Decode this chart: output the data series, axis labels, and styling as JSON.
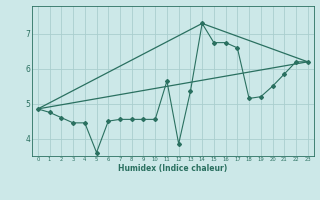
{
  "xlabel": "Humidex (Indice chaleur)",
  "bg_color": "#cce8e8",
  "line_color": "#2a7060",
  "grid_color": "#aacece",
  "x_min": -0.5,
  "x_max": 23.5,
  "y_min": 3.5,
  "y_max": 7.8,
  "series1_x": [
    0,
    1,
    2,
    3,
    4,
    5,
    6,
    7,
    8,
    9,
    10,
    11,
    12,
    13,
    14,
    15,
    16,
    17,
    18,
    19,
    20,
    21,
    22,
    23
  ],
  "series1_y": [
    4.85,
    4.75,
    4.6,
    4.45,
    4.45,
    3.6,
    4.5,
    4.55,
    4.55,
    4.55,
    4.55,
    5.65,
    3.85,
    5.35,
    7.3,
    6.75,
    6.75,
    6.6,
    5.15,
    5.2,
    5.5,
    5.85,
    6.2,
    6.2
  ],
  "series2_x": [
    0,
    23
  ],
  "series2_y": [
    4.85,
    6.2
  ],
  "series3_x": [
    0,
    14,
    23
  ],
  "series3_y": [
    4.85,
    7.3,
    6.2
  ],
  "yticks": [
    4,
    5,
    6,
    7
  ],
  "xticks": [
    0,
    1,
    2,
    3,
    4,
    5,
    6,
    7,
    8,
    9,
    10,
    11,
    12,
    13,
    14,
    15,
    16,
    17,
    18,
    19,
    20,
    21,
    22,
    23
  ]
}
